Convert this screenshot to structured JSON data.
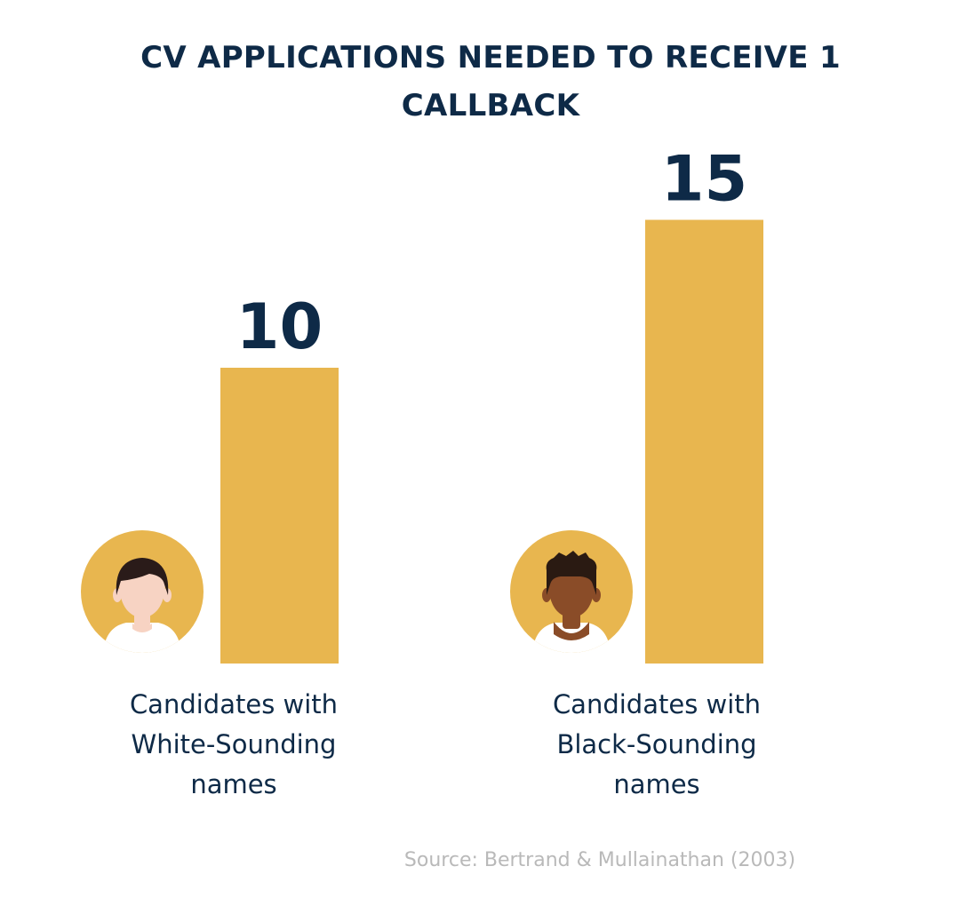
{
  "colors": {
    "bar": "#e8b64f",
    "title": "#0e2a47",
    "source": "#b9b9b9",
    "skin_white": "#f7d3c3",
    "skin_black": "#8a4c28",
    "hair_white": "#2a1b19",
    "hair_black": "#2a1a12",
    "shirt": "#ffffff"
  },
  "icons": [
    "white-candidate-avatar-icon",
    "black-candidate-avatar-icon"
  ],
  "chart_data": {
    "type": "bar",
    "title": "CV APPLICATIONS NEEDED TO RECEIVE 1 CALLBACK",
    "categories": [
      "Candidates with White-Sounding names",
      "Candidates with Black-Sounding names"
    ],
    "values": [
      10,
      15
    ],
    "value_labels": [
      "10",
      "15"
    ],
    "xlabel": "",
    "ylabel": "",
    "grid": false,
    "source": "Source: Bertrand & Mullainathan (2003)"
  }
}
